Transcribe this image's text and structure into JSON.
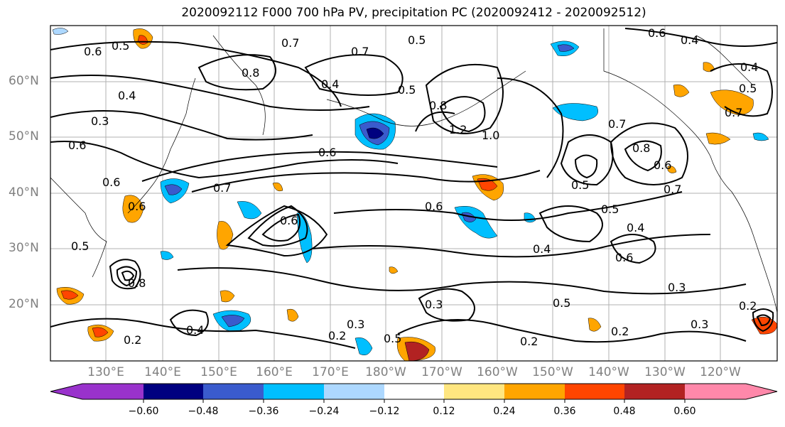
{
  "title": "2020092112 F000 700 hPa PV, precipitation PC (2020092412 - 2020092512)",
  "lat_labels": [
    "60°N",
    "50°N",
    "40°N",
    "30°N",
    "20°N"
  ],
  "lon_labels": [
    "130°E",
    "140°E",
    "150°E",
    "160°E",
    "170°E",
    "180°W",
    "170°W",
    "160°W",
    "150°W",
    "140°W",
    "130°W",
    "120°W"
  ],
  "contour_labels": [
    "0.6",
    "0.5",
    "0.4",
    "0.3",
    "0.6",
    "0.6",
    "0.7",
    "0.8",
    "0.7",
    "0.5",
    "0.4",
    "0.8",
    "0.5",
    "1.2",
    "1.0",
    "0.6",
    "0.7",
    "0.6",
    "0.4",
    "0.7",
    "0.6",
    "0.5",
    "0.4",
    "0.5",
    "0.8",
    "0.5",
    "0.7",
    "0.6",
    "0.6",
    "0.4",
    "0.2",
    "0.5",
    "0.7",
    "0.2",
    "0.3",
    "0.2",
    "0.4",
    "0.3",
    "0.5",
    "0.2",
    "0.3",
    "0.2",
    "0.3",
    "0.8",
    "0.5",
    "0.6",
    "0.6",
    "0.4"
  ],
  "colorbar": {
    "tick_labels": [
      "−0.60",
      "−0.48",
      "−0.36",
      "−0.24",
      "−0.12",
      "0.12",
      "0.24",
      "0.36",
      "0.48",
      "0.60"
    ],
    "colors": [
      "#9932cc",
      "#000080",
      "#3a5bcd",
      "#00bfff",
      "#add8ff",
      "#ffffff",
      "#ffe680",
      "#ffa500",
      "#ff4500",
      "#b22222",
      "#ff88aa"
    ]
  }
}
